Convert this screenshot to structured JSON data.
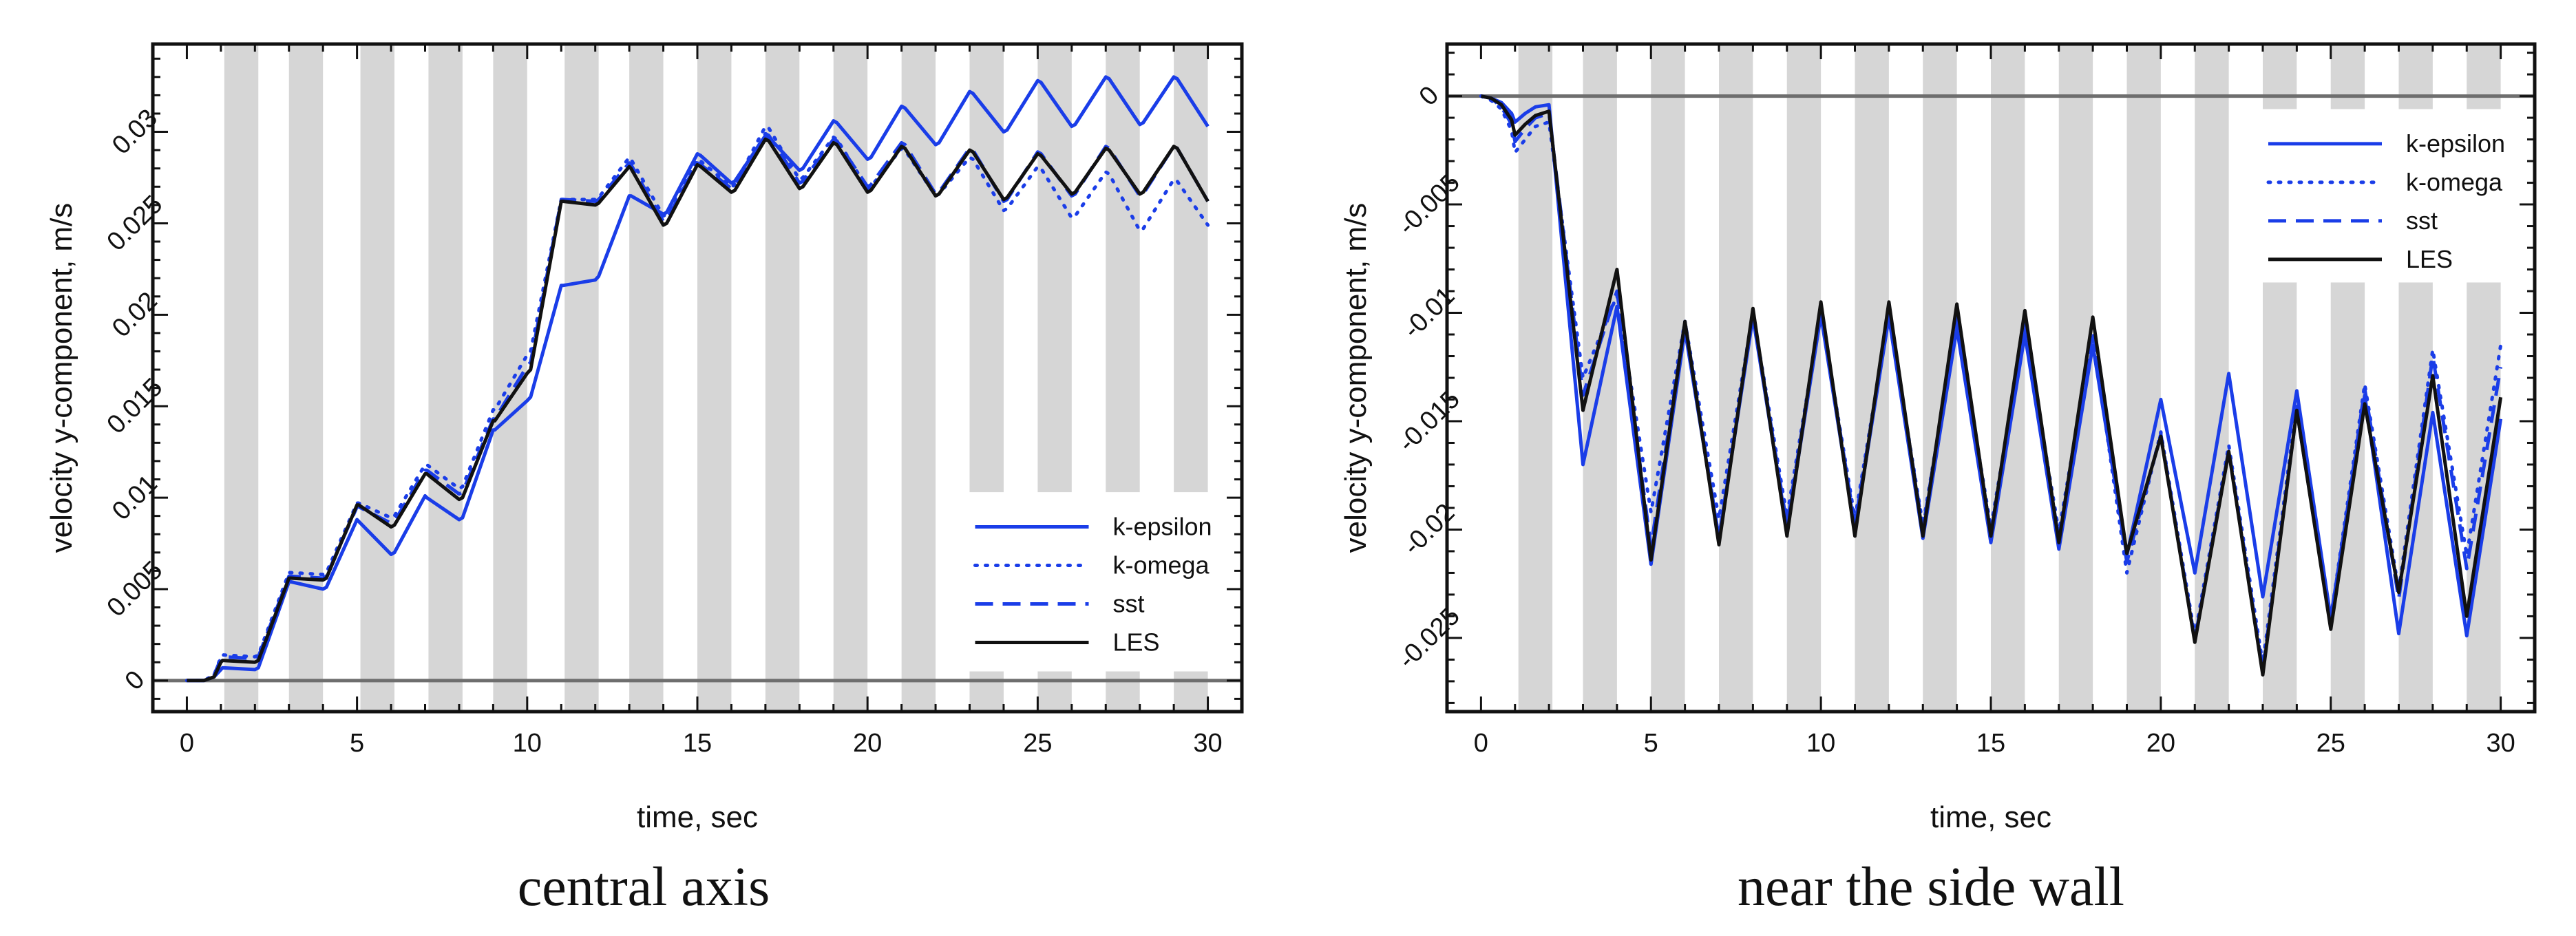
{
  "chart_data": [
    {
      "type": "line",
      "caption": "central axis",
      "xlabel": "time, sec",
      "ylabel": "velocity y-component, m/s",
      "xlim": [
        -1,
        31
      ],
      "ylim": [
        -0.0017,
        0.0348
      ],
      "xticks": [
        0,
        5,
        10,
        15,
        20,
        25,
        30
      ],
      "yticks": [
        0,
        0.005,
        0.01,
        0.015,
        0.02,
        0.025,
        0.03
      ],
      "ytick_labels": [
        "0",
        "0.005",
        "0.01",
        "0.015",
        "0.02",
        "0.025",
        "0.03"
      ],
      "zero_line": 0,
      "legend": {
        "position": "lower-right",
        "entries": [
          "k-epsilon",
          "k-omega",
          "sst",
          "LES"
        ]
      },
      "gray_bands": {
        "intervals": [
          [
            1.1,
            2.1
          ],
          [
            3.0,
            4.0
          ],
          [
            5.1,
            6.1
          ],
          [
            7.1,
            8.1
          ],
          [
            9.0,
            10.0
          ],
          [
            11.1,
            12.1
          ],
          [
            13.0,
            14.0
          ],
          [
            15.0,
            16.0
          ],
          [
            17.0,
            18.0
          ],
          [
            19.0,
            20.0
          ],
          [
            21.0,
            22.0
          ],
          [
            23.0,
            24.0
          ],
          [
            25.0,
            26.0
          ],
          [
            27.0,
            28.0
          ],
          [
            29.0,
            30.0
          ]
        ],
        "legend_gap_from_band": 11,
        "legend_gap_y": [
          0.0005,
          0.0103
        ]
      },
      "series": [
        {
          "name": "k-epsilon",
          "style": "solid",
          "color": "#1a3de8",
          "x": [
            0,
            0.5,
            0.8,
            1,
            1.05,
            2,
            2.1,
            3,
            3.05,
            4,
            4.1,
            5,
            5.05,
            6,
            6.1,
            7,
            7.05,
            8,
            8.1,
            9,
            9.05,
            10,
            10.1,
            11,
            11.05,
            12,
            12.1,
            13,
            13.05,
            14,
            14.1,
            15,
            15.1,
            16,
            16.1,
            17,
            17.1,
            18,
            18.1,
            19,
            19.1,
            20,
            20.1,
            21,
            21.1,
            22,
            22.1,
            23,
            23.1,
            24,
            24.1,
            25,
            25.1,
            26,
            26.1,
            27,
            27.1,
            28,
            28.1,
            29,
            29.1,
            30
          ],
          "y": [
            0,
            0,
            0.0002,
            0.0006,
            0.0007,
            0.0006,
            0.0007,
            0.0054,
            0.0054,
            0.005,
            0.0051,
            0.0088,
            0.0087,
            0.0069,
            0.007,
            0.0101,
            0.01,
            0.0088,
            0.0089,
            0.0137,
            0.0137,
            0.0153,
            0.0155,
            0.0216,
            0.0216,
            0.0219,
            0.0221,
            0.0265,
            0.0265,
            0.0255,
            0.0256,
            0.0288,
            0.0287,
            0.0272,
            0.0273,
            0.0298,
            0.0297,
            0.0279,
            0.028,
            0.0306,
            0.0305,
            0.0285,
            0.0286,
            0.0314,
            0.0313,
            0.0293,
            0.0294,
            0.0322,
            0.0321,
            0.03,
            0.0301,
            0.0328,
            0.0327,
            0.0303,
            0.0304,
            0.033,
            0.0329,
            0.0304,
            0.0305,
            0.033,
            0.0329,
            0.0303
          ]
        },
        {
          "name": "k-omega",
          "style": "dotted",
          "color": "#1a3de8",
          "x": [
            0,
            0.5,
            0.8,
            1,
            1.05,
            2,
            2.1,
            3,
            3.05,
            4,
            4.1,
            5,
            5.05,
            6,
            6.1,
            7,
            7.05,
            8,
            8.1,
            9,
            9.05,
            10,
            10.1,
            11,
            11.05,
            12,
            12.1,
            13,
            13.05,
            14,
            14.1,
            15,
            15.1,
            16,
            16.1,
            17,
            17.1,
            18,
            18.1,
            19,
            19.1,
            20,
            20.1,
            21,
            21.1,
            22,
            22.1,
            23,
            23.1,
            24,
            24.1,
            25,
            25.1,
            26,
            26.1,
            27,
            27.1,
            28,
            28.1,
            29,
            29.1,
            30
          ],
          "y": [
            0,
            0,
            0.0003,
            0.0013,
            0.0014,
            0.0013,
            0.0014,
            0.0059,
            0.0059,
            0.0058,
            0.0059,
            0.0097,
            0.0097,
            0.0089,
            0.009,
            0.0118,
            0.0118,
            0.0105,
            0.0106,
            0.0148,
            0.0148,
            0.0178,
            0.018,
            0.0263,
            0.0263,
            0.0263,
            0.0264,
            0.0286,
            0.0285,
            0.0254,
            0.0255,
            0.0285,
            0.0284,
            0.027,
            0.0271,
            0.0303,
            0.0302,
            0.0274,
            0.0275,
            0.0297,
            0.0296,
            0.0269,
            0.027,
            0.0291,
            0.029,
            0.0265,
            0.0266,
            0.0286,
            0.0285,
            0.0257,
            0.0258,
            0.0281,
            0.028,
            0.0253,
            0.0254,
            0.0278,
            0.0277,
            0.0246,
            0.0247,
            0.0274,
            0.0273,
            0.0249
          ]
        },
        {
          "name": "sst",
          "style": "dashed",
          "color": "#1a3de8",
          "x": [
            0,
            0.5,
            0.8,
            1,
            1.05,
            2,
            2.1,
            3,
            3.05,
            4,
            4.1,
            5,
            5.05,
            6,
            6.1,
            7,
            7.05,
            8,
            8.1,
            9,
            9.05,
            10,
            10.1,
            11,
            11.05,
            12,
            12.1,
            13,
            13.05,
            14,
            14.1,
            15,
            15.1,
            16,
            16.1,
            17,
            17.1,
            18,
            18.1,
            19,
            19.1,
            20,
            20.1,
            21,
            21.1,
            22,
            22.1,
            23,
            23.1,
            24,
            24.1,
            25,
            25.1,
            26,
            26.1,
            27,
            27.1,
            28,
            28.1,
            29,
            29.1,
            30
          ],
          "y": [
            0,
            0,
            0.0003,
            0.0012,
            0.0013,
            0.0012,
            0.0013,
            0.0057,
            0.0057,
            0.0056,
            0.0057,
            0.0095,
            0.0095,
            0.0086,
            0.0087,
            0.0115,
            0.0115,
            0.0102,
            0.0103,
            0.0143,
            0.0143,
            0.0172,
            0.0174,
            0.0263,
            0.0263,
            0.0262,
            0.0263,
            0.0283,
            0.0282,
            0.0251,
            0.0252,
            0.0283,
            0.0282,
            0.0269,
            0.027,
            0.0299,
            0.0298,
            0.0272,
            0.0273,
            0.0296,
            0.0295,
            0.027,
            0.0271,
            0.0294,
            0.0293,
            0.0266,
            0.0267,
            0.0291,
            0.029,
            0.0262,
            0.0263,
            0.0289,
            0.0288,
            0.0265,
            0.0266,
            0.0292,
            0.0291,
            0.0265,
            0.0266,
            0.0292,
            0.0291,
            0.0262
          ]
        },
        {
          "name": "LES",
          "style": "solid",
          "color": "#111111",
          "x": [
            0,
            0.5,
            0.8,
            1,
            1.05,
            2,
            2.1,
            3,
            3.05,
            4,
            4.1,
            5,
            5.05,
            6,
            6.1,
            7,
            7.05,
            8,
            8.1,
            9,
            9.05,
            10,
            10.1,
            11,
            11.05,
            12,
            12.1,
            13,
            13.05,
            14,
            14.1,
            15,
            15.1,
            16,
            16.1,
            17,
            17.1,
            18,
            18.1,
            19,
            19.1,
            20,
            20.1,
            21,
            21.1,
            22,
            22.1,
            23,
            23.1,
            24,
            24.1,
            25,
            25.1,
            26,
            26.1,
            27,
            27.1,
            28,
            28.1,
            29,
            29.1,
            30
          ],
          "y": [
            0,
            0,
            0.0002,
            0.001,
            0.0011,
            0.001,
            0.0011,
            0.0056,
            0.0056,
            0.0055,
            0.0056,
            0.0096,
            0.0096,
            0.0084,
            0.0085,
            0.0113,
            0.0113,
            0.0099,
            0.01,
            0.0142,
            0.0142,
            0.0168,
            0.017,
            0.0262,
            0.0262,
            0.026,
            0.0261,
            0.0281,
            0.028,
            0.0249,
            0.025,
            0.0282,
            0.0281,
            0.0267,
            0.0268,
            0.0296,
            0.0295,
            0.0269,
            0.027,
            0.0294,
            0.0293,
            0.0267,
            0.0268,
            0.0292,
            0.0291,
            0.0265,
            0.0266,
            0.029,
            0.0289,
            0.0263,
            0.0264,
            0.0288,
            0.0287,
            0.0266,
            0.0267,
            0.0291,
            0.029,
            0.0266,
            0.0267,
            0.0292,
            0.0291,
            0.0262
          ]
        }
      ]
    },
    {
      "type": "line",
      "caption": "near the side wall",
      "xlabel": "time, sec",
      "ylabel": "velocity y-component, m/s",
      "xlim": [
        -1,
        31
      ],
      "ylim": [
        -0.0284,
        0.0024
      ],
      "xticks": [
        0,
        5,
        10,
        15,
        20,
        25,
        30
      ],
      "yticks": [
        0,
        -0.005,
        -0.01,
        -0.015,
        -0.02,
        -0.025
      ],
      "ytick_labels": [
        "0",
        "-0.005",
        "-0.01",
        "-0.015",
        "-0.02",
        "-0.025"
      ],
      "zero_line": 0,
      "legend": {
        "position": "upper-right",
        "entries": [
          "k-epsilon",
          "k-omega",
          "sst",
          "LES"
        ]
      },
      "gray_bands": {
        "intervals": [
          [
            1.1,
            2.1
          ],
          [
            3.0,
            4.0
          ],
          [
            5.0,
            6.0
          ],
          [
            7.0,
            8.0
          ],
          [
            9.0,
            10.0
          ],
          [
            11.0,
            12.0
          ],
          [
            13.0,
            14.0
          ],
          [
            15.0,
            16.0
          ],
          [
            17.0,
            18.0
          ],
          [
            19.0,
            20.0
          ],
          [
            21.0,
            22.0
          ],
          [
            23.0,
            24.0
          ],
          [
            25.0,
            26.0
          ],
          [
            27.0,
            28.0
          ],
          [
            29.0,
            30.0
          ]
        ],
        "legend_gap_from_band": 11,
        "legend_gap_y": [
          -0.0086,
          -0.0006
        ]
      },
      "series": [
        {
          "name": "k-epsilon",
          "style": "solid",
          "color": "#1a3de8",
          "x": [
            0,
            0.3,
            0.6,
            0.9,
            1.0,
            1.3,
            1.6,
            2.0,
            3.0,
            4.0,
            5.0,
            6.0,
            7.0,
            8.0,
            9.0,
            10.0,
            11.0,
            12.0,
            13.0,
            14.0,
            15.0,
            16.0,
            17.0,
            18.0,
            19.0,
            20.0,
            21.0,
            22.0,
            23.0,
            24.0,
            25.0,
            26.0,
            27.0,
            28.0,
            29.0,
            30.0
          ],
          "y": [
            0,
            -0.0001,
            -0.0003,
            -0.0008,
            -0.0012,
            -0.0008,
            -0.0005,
            -0.0004,
            -0.017,
            -0.0097,
            -0.0216,
            -0.0108,
            -0.0204,
            -0.0102,
            -0.02,
            -0.0101,
            -0.02,
            -0.0102,
            -0.0204,
            -0.0107,
            -0.0206,
            -0.011,
            -0.0209,
            -0.0115,
            -0.0212,
            -0.014,
            -0.022,
            -0.0128,
            -0.0231,
            -0.0136,
            -0.0241,
            -0.0138,
            -0.0248,
            -0.0146,
            -0.0249,
            -0.0149
          ]
        },
        {
          "name": "k-omega",
          "style": "dotted",
          "color": "#1a3de8",
          "x": [
            0,
            0.3,
            0.6,
            0.9,
            1.0,
            1.3,
            1.6,
            2.0,
            3.0,
            4.0,
            5.0,
            6.0,
            7.0,
            8.0,
            9.0,
            10.0,
            11.0,
            12.0,
            13.0,
            14.0,
            15.0,
            16.0,
            17.0,
            18.0,
            19.0,
            20.0,
            21.0,
            22.0,
            23.0,
            24.0,
            25.0,
            26.0,
            27.0,
            28.0,
            29.0,
            30.0
          ],
          "y": [
            0,
            -0.0002,
            -0.0006,
            -0.0016,
            -0.0026,
            -0.002,
            -0.0014,
            -0.0012,
            -0.013,
            -0.0092,
            -0.0192,
            -0.0104,
            -0.0195,
            -0.01,
            -0.0194,
            -0.01,
            -0.0195,
            -0.0101,
            -0.0198,
            -0.0104,
            -0.0199,
            -0.0107,
            -0.0201,
            -0.011,
            -0.022,
            -0.0155,
            -0.0249,
            -0.0161,
            -0.0262,
            -0.0142,
            -0.0241,
            -0.0133,
            -0.0228,
            -0.0117,
            -0.0212,
            -0.0115
          ]
        },
        {
          "name": "sst",
          "style": "dashed",
          "color": "#1a3de8",
          "x": [
            0,
            0.3,
            0.6,
            0.9,
            1.0,
            1.3,
            1.6,
            2.0,
            3.0,
            4.0,
            5.0,
            6.0,
            7.0,
            8.0,
            9.0,
            10.0,
            11.0,
            12.0,
            13.0,
            14.0,
            15.0,
            16.0,
            17.0,
            18.0,
            19.0,
            20.0,
            21.0,
            22.0,
            23.0,
            24.0,
            25.0,
            26.0,
            27.0,
            28.0,
            29.0,
            30.0
          ],
          "y": [
            0,
            -0.0001,
            -0.0005,
            -0.0013,
            -0.0021,
            -0.0015,
            -0.001,
            -0.0008,
            -0.0138,
            -0.009,
            -0.0208,
            -0.0104,
            -0.0204,
            -0.01,
            -0.0198,
            -0.0099,
            -0.0198,
            -0.01,
            -0.02,
            -0.0102,
            -0.0202,
            -0.0104,
            -0.0205,
            -0.0108,
            -0.0215,
            -0.0156,
            -0.0251,
            -0.0163,
            -0.0265,
            -0.0145,
            -0.0245,
            -0.0135,
            -0.0232,
            -0.012,
            -0.0218,
            -0.0125
          ]
        },
        {
          "name": "LES",
          "style": "solid",
          "color": "#111111",
          "x": [
            0,
            0.3,
            0.6,
            0.9,
            1.0,
            1.3,
            1.6,
            2.0,
            3.0,
            4.0,
            5.0,
            6.0,
            7.0,
            8.0,
            9.0,
            10.0,
            11.0,
            12.0,
            13.0,
            14.0,
            15.0,
            16.0,
            17.0,
            18.0,
            19.0,
            20.0,
            21.0,
            22.0,
            23.0,
            24.0,
            25.0,
            26.0,
            27.0,
            28.0,
            29.0,
            30.0
          ],
          "y": [
            0,
            -0.0001,
            -0.0004,
            -0.0011,
            -0.0018,
            -0.0013,
            -0.0009,
            -0.0007,
            -0.0145,
            -0.008,
            -0.0214,
            -0.0104,
            -0.0207,
            -0.0098,
            -0.0203,
            -0.0095,
            -0.0203,
            -0.0095,
            -0.0203,
            -0.0096,
            -0.0203,
            -0.0099,
            -0.0206,
            -0.0102,
            -0.0211,
            -0.0157,
            -0.0252,
            -0.0164,
            -0.0267,
            -0.0145,
            -0.0246,
            -0.0142,
            -0.0229,
            -0.0129,
            -0.024,
            -0.0139
          ]
        }
      ]
    }
  ]
}
